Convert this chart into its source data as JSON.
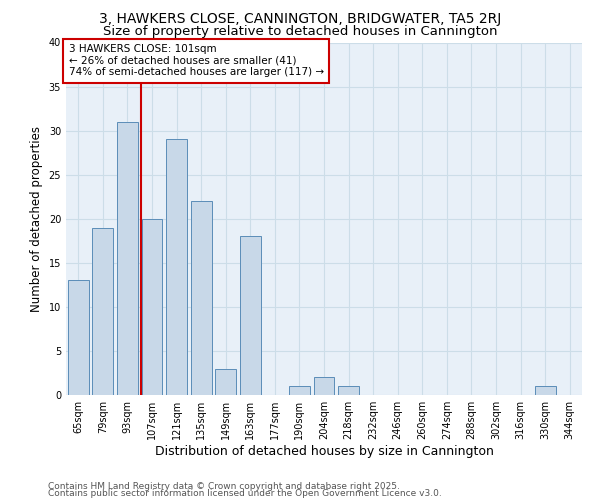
{
  "title1": "3, HAWKERS CLOSE, CANNINGTON, BRIDGWATER, TA5 2RJ",
  "title2": "Size of property relative to detached houses in Cannington",
  "xlabel": "Distribution of detached houses by size in Cannington",
  "ylabel": "Number of detached properties",
  "categories": [
    "65sqm",
    "79sqm",
    "93sqm",
    "107sqm",
    "121sqm",
    "135sqm",
    "149sqm",
    "163sqm",
    "177sqm",
    "190sqm",
    "204sqm",
    "218sqm",
    "232sqm",
    "246sqm",
    "260sqm",
    "274sqm",
    "288sqm",
    "302sqm",
    "316sqm",
    "330sqm",
    "344sqm"
  ],
  "values": [
    13,
    19,
    31,
    20,
    29,
    22,
    3,
    18,
    0,
    1,
    2,
    1,
    0,
    0,
    0,
    0,
    0,
    0,
    0,
    1,
    0
  ],
  "bar_color": "#c8d8e8",
  "bar_edge_color": "#5b8db8",
  "grid_color": "#ccdde8",
  "background_color": "#e8f0f8",
  "annotation_line1": "3 HAWKERS CLOSE: 101sqm",
  "annotation_line2": "← 26% of detached houses are smaller (41)",
  "annotation_line3": "74% of semi-detached houses are larger (117) →",
  "annotation_box_color": "#ffffff",
  "annotation_box_edge_color": "#cc0000",
  "vline_x_index": 2.57,
  "vline_color": "#cc0000",
  "ylim": [
    0,
    40
  ],
  "yticks": [
    0,
    5,
    10,
    15,
    20,
    25,
    30,
    35,
    40
  ],
  "footer1": "Contains HM Land Registry data © Crown copyright and database right 2025.",
  "footer2": "Contains public sector information licensed under the Open Government Licence v3.0.",
  "title_fontsize": 10,
  "subtitle_fontsize": 9.5,
  "tick_fontsize": 7,
  "ylabel_fontsize": 8.5,
  "xlabel_fontsize": 9,
  "annotation_fontsize": 7.5,
  "footer_fontsize": 6.5
}
